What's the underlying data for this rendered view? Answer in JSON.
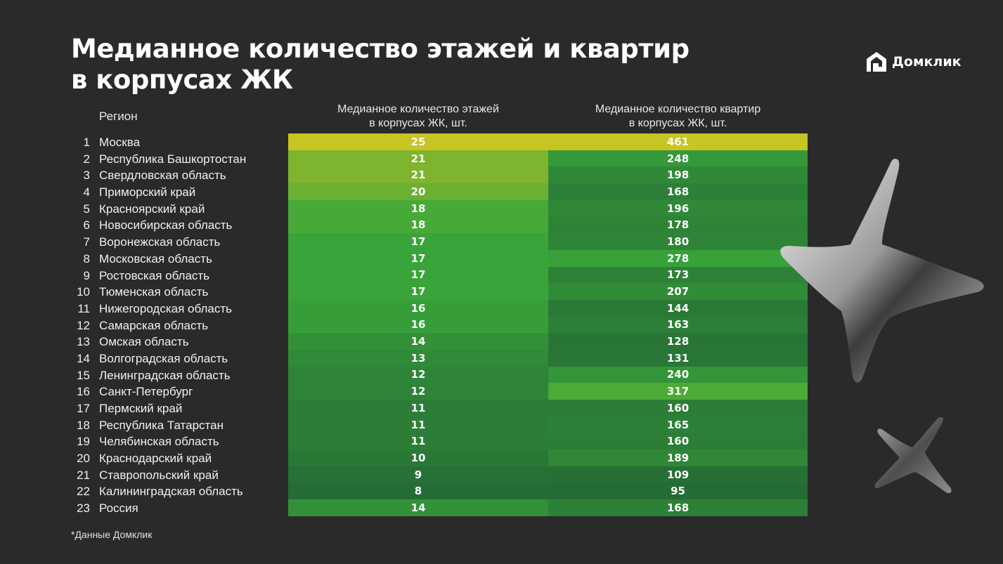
{
  "title_lines": [
    "Медианное количество этажей и квартир",
    "в корпусах ЖК"
  ],
  "logo": {
    "text": "Домклик",
    "icon": "house-logo-icon"
  },
  "footnote": "*Данные Домклик",
  "chart_data": {
    "type": "table",
    "columns": {
      "region": "Регион",
      "floors": [
        "Медианное количество этажей",
        "в корпусах ЖК, шт."
      ],
      "apartments": [
        "Медианное количество квартир",
        "в корпусах ЖК, шт."
      ]
    },
    "rows": [
      {
        "rank": "1",
        "region": "Москва",
        "floors": 25,
        "apartments": 461
      },
      {
        "rank": "2",
        "region": "Республика Башкортостан",
        "floors": 21,
        "apartments": 248
      },
      {
        "rank": "3",
        "region": "Свердловская область",
        "floors": 21,
        "apartments": 198
      },
      {
        "rank": "4",
        "region": "Приморский край",
        "floors": 20,
        "apartments": 168
      },
      {
        "rank": "5",
        "region": "Красноярский край",
        "floors": 18,
        "apartments": 196
      },
      {
        "rank": "6",
        "region": "Новосибирская область",
        "floors": 18,
        "apartments": 178
      },
      {
        "rank": "7",
        "region": "Воронежская область",
        "floors": 17,
        "apartments": 180
      },
      {
        "rank": "8",
        "region": "Московская область",
        "floors": 17,
        "apartments": 278
      },
      {
        "rank": "9",
        "region": "Ростовская область",
        "floors": 17,
        "apartments": 173
      },
      {
        "rank": "10",
        "region": "Тюменская область",
        "floors": 17,
        "apartments": 207
      },
      {
        "rank": "11",
        "region": "Нижегородская область",
        "floors": 16,
        "apartments": 144
      },
      {
        "rank": "12",
        "region": "Самарская область",
        "floors": 16,
        "apartments": 163
      },
      {
        "rank": "13",
        "region": "Омская область",
        "floors": 14,
        "apartments": 128
      },
      {
        "rank": "14",
        "region": "Волгоградская область",
        "floors": 13,
        "apartments": 131
      },
      {
        "rank": "15",
        "region": "Ленинградская область",
        "floors": 12,
        "apartments": 240
      },
      {
        "rank": "16",
        "region": "Санкт-Петербург",
        "floors": 12,
        "apartments": 317
      },
      {
        "rank": "17",
        "region": "Пермский край",
        "floors": 11,
        "apartments": 160
      },
      {
        "rank": "18",
        "region": "Республика Татарстан",
        "floors": 11,
        "apartments": 165
      },
      {
        "rank": "19",
        "region": "Челябинская область",
        "floors": 11,
        "apartments": 160
      },
      {
        "rank": "20",
        "region": "Краснодарский край",
        "floors": 10,
        "apartments": 189
      },
      {
        "rank": "21",
        "region": "Ставропольский край",
        "floors": 9,
        "apartments": 109
      },
      {
        "rank": "22",
        "region": "Калининградская область",
        "floors": 8,
        "apartments": 95
      },
      {
        "rank": "23",
        "region": "Россия",
        "floors": 14,
        "apartments": 168
      }
    ],
    "color_scale": {
      "low": "#256b35",
      "mid": "#3aa63a",
      "high": "#c8c421",
      "floors_range": [
        8,
        25
      ],
      "apartments_range": [
        95,
        461
      ]
    }
  }
}
